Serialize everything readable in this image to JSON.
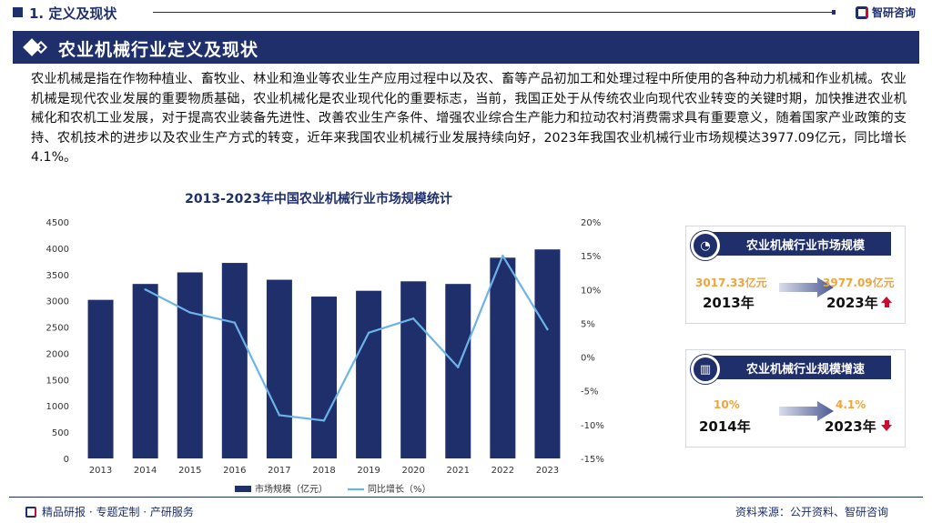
{
  "header": {
    "section_number_title": "1. 定义及现状",
    "brand": "智研咨询"
  },
  "section": {
    "title": "农业机械行业定义及现状"
  },
  "intro": {
    "text": "农业机械是指在作物种植业、畜牧业、林业和渔业等农业生产应用过程中以及农、畜等产品初加工和处理过程中所使用的各种动力机械和作业机械。农业机械是现代农业发展的重要物质基础，农业机械化是农业现代化的重要标志，当前，我国正处于从传统农业向现代农业转变的关键时期，加快推进农业机械化和农机工业发展，对于提高农业装备先进性、改善农业生产条件、增强农业综合生产能力和拉动农村消费需求具有重要意义，随着国家产业政策的支持、农机技术的进步以及农业生产方式的转变，近年来我国农业机械行业发展持续向好，2023年我国农业机械行业市场规模达3977.09亿元，同比增长4.1%。"
  },
  "chart_data": {
    "type": "bar",
    "title": "2013-2023年中国农业机械行业市场规模统计",
    "categories": [
      "2013",
      "2014",
      "2015",
      "2016",
      "2017",
      "2018",
      "2019",
      "2020",
      "2021",
      "2022",
      "2023"
    ],
    "series": [
      {
        "name": "市场规模（亿元）",
        "type": "bar",
        "axis": "left",
        "color": "#1f2f6b",
        "values": [
          3017.33,
          3320,
          3540,
          3720,
          3400,
          3080,
          3190,
          3370,
          3320,
          3820,
          3977.09
        ]
      },
      {
        "name": "同比增长（%）",
        "type": "line",
        "axis": "right",
        "color": "#6bb3e8",
        "values": [
          null,
          10,
          6.6,
          5.1,
          -8.6,
          -9.4,
          3.6,
          5.7,
          -1.5,
          15.0,
          4.1
        ]
      }
    ],
    "y_left": {
      "min": 0,
      "max": 4500,
      "ticks": [
        0,
        500,
        1000,
        1500,
        2000,
        2500,
        3000,
        3500,
        4000,
        4500
      ]
    },
    "y_right": {
      "min": -15,
      "max": 20,
      "ticks": [
        -15,
        -10,
        -5,
        0,
        5,
        10,
        15,
        20
      ],
      "suffix": "%"
    },
    "legend_position": "bottom"
  },
  "cards": {
    "size": {
      "title": "农业机械行业市场规模",
      "from_value": "3017.33亿元",
      "from_year": "2013年",
      "to_value": "3977.09亿元",
      "to_year": "2023年",
      "trend": "up"
    },
    "growth": {
      "title": "农业机械行业规模增速",
      "from_value": "10%",
      "from_year": "2014年",
      "to_value": "4.1%",
      "to_year": "2023年",
      "trend": "down"
    }
  },
  "footer": {
    "left": "精品研报 · 专题定制 · 产研服务",
    "source": "资料来源：公开资料、智研咨询"
  },
  "colors": {
    "navy": "#1f2f6b",
    "accent_red": "#c8102e",
    "line_blue": "#6bb3e8",
    "value_orange": "#f2a43a"
  }
}
